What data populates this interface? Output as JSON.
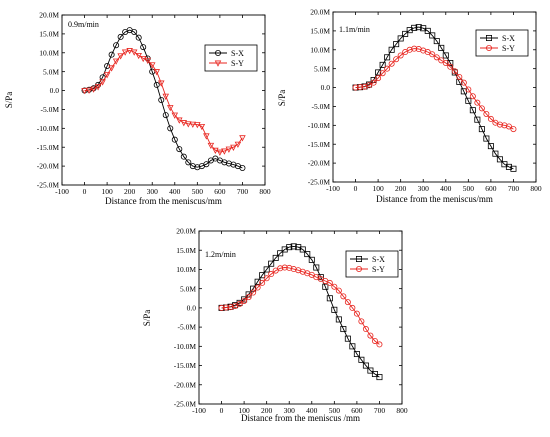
{
  "figure": {
    "panels": [
      {
        "id": "a",
        "label": "0.9m/min"
      },
      {
        "id": "b",
        "label": "1.1m/min"
      },
      {
        "id": "c",
        "label": "1.2m/min"
      }
    ]
  },
  "colors": {
    "sx": "#000000",
    "sy": "#e8251f",
    "axis": "#000000"
  },
  "chart_data": [
    {
      "type": "line",
      "title": "",
      "annotation": "0.9m/min",
      "xlabel": "Distance from the meniscus/mm",
      "ylabel": "S/Pa",
      "xlim": [
        -100,
        800
      ],
      "ylim": [
        -25,
        20
      ],
      "y_unit": "M",
      "xticks": [
        -100,
        0,
        100,
        200,
        300,
        400,
        500,
        600,
        700,
        800
      ],
      "yticks": [
        20,
        15,
        10,
        5,
        0,
        -5,
        -10,
        -15,
        -20,
        -25
      ],
      "xtick_labels": [
        "-100",
        "0",
        "100",
        "200",
        "300",
        "400",
        "500",
        "600",
        "700",
        "800"
      ],
      "ytick_labels": [
        "20.0M",
        "15.0M",
        "10.0M",
        "5.0M",
        "0.0",
        "-5.0M",
        "-10.0M",
        "-15.0M",
        "-20.0M",
        "-25.0M"
      ],
      "legend": "top-right",
      "series": [
        {
          "name": "S-X",
          "marker": "circle",
          "x": [
            0,
            20,
            40,
            60,
            80,
            100,
            120,
            140,
            160,
            180,
            200,
            220,
            240,
            260,
            280,
            300,
            320,
            340,
            360,
            380,
            400,
            420,
            440,
            460,
            480,
            500,
            520,
            540,
            560,
            580,
            600,
            620,
            640,
            660,
            680,
            700
          ],
          "y": [
            0,
            0.2,
            0.6,
            1.5,
            3.5,
            6.5,
            9.5,
            12.0,
            14.2,
            15.5,
            16.0,
            15.5,
            14.0,
            11.5,
            8.5,
            5.0,
            1.5,
            -2.5,
            -6.5,
            -10.0,
            -13.0,
            -15.5,
            -17.5,
            -19.0,
            -20.0,
            -20.3,
            -20.0,
            -19.5,
            -18.5,
            -18.0,
            -18.5,
            -19.0,
            -19.3,
            -19.6,
            -20.0,
            -20.5
          ]
        },
        {
          "name": "S-Y",
          "marker": "triangle-down",
          "x": [
            0,
            20,
            40,
            60,
            80,
            100,
            120,
            140,
            160,
            180,
            200,
            220,
            240,
            260,
            280,
            300,
            320,
            340,
            360,
            380,
            400,
            420,
            440,
            460,
            480,
            500,
            520,
            540,
            560,
            580,
            600,
            620,
            640,
            660,
            680,
            700
          ],
          "y": [
            0,
            0.1,
            0.4,
            1.0,
            2.3,
            4.2,
            6.0,
            7.8,
            9.2,
            10.2,
            10.6,
            10.2,
            9.3,
            8.5,
            8.0,
            6.8,
            5.0,
            2.0,
            -1.5,
            -4.5,
            -6.5,
            -7.8,
            -8.5,
            -8.8,
            -8.9,
            -9.0,
            -9.5,
            -12.0,
            -14.5,
            -15.8,
            -16.3,
            -16.0,
            -15.5,
            -15.0,
            -14.2,
            -12.5
          ]
        }
      ]
    },
    {
      "type": "line",
      "title": "",
      "annotation": "1.1m/min",
      "xlabel": "Distance from the meniscus/mm",
      "ylabel": "S/Pa",
      "xlim": [
        -100,
        800
      ],
      "ylim": [
        -25,
        20
      ],
      "y_unit": "M",
      "xticks": [
        -100,
        0,
        100,
        200,
        300,
        400,
        500,
        600,
        700,
        800
      ],
      "yticks": [
        20,
        15,
        10,
        5,
        0,
        -5,
        -10,
        -15,
        -20,
        -25
      ],
      "xtick_labels": [
        "-100",
        "0",
        "100",
        "200",
        "300",
        "400",
        "500",
        "600",
        "700",
        "800"
      ],
      "ytick_labels": [
        "20.0M",
        "15.0M",
        "10.0M",
        "5.0M",
        "0.0",
        "-5.0M",
        "-10.0M",
        "-15.0M",
        "-20.0M",
        "-25.0M"
      ],
      "legend": "top-right",
      "series": [
        {
          "name": "S-X",
          "marker": "square",
          "x": [
            0,
            20,
            40,
            60,
            80,
            100,
            120,
            140,
            160,
            180,
            200,
            220,
            240,
            260,
            280,
            300,
            320,
            340,
            360,
            380,
            400,
            420,
            440,
            460,
            480,
            500,
            520,
            540,
            560,
            580,
            600,
            620,
            640,
            660,
            680,
            700
          ],
          "y": [
            0,
            0.1,
            0.3,
            0.8,
            2.0,
            4.0,
            6.0,
            8.0,
            10.0,
            11.5,
            13.0,
            14.2,
            15.2,
            15.8,
            16.0,
            15.7,
            15.0,
            13.8,
            12.3,
            10.5,
            8.5,
            6.5,
            4.0,
            1.5,
            -1.0,
            -3.5,
            -6.0,
            -8.5,
            -11.0,
            -13.5,
            -15.5,
            -17.5,
            -19.0,
            -20.3,
            -21.0,
            -21.5
          ]
        },
        {
          "name": "S-Y",
          "marker": "circle",
          "x": [
            0,
            20,
            40,
            60,
            80,
            100,
            120,
            140,
            160,
            180,
            200,
            220,
            240,
            260,
            280,
            300,
            320,
            340,
            360,
            380,
            400,
            420,
            440,
            460,
            480,
            500,
            520,
            540,
            560,
            580,
            600,
            620,
            640,
            660,
            680,
            700
          ],
          "y": [
            0,
            0.1,
            0.2,
            0.6,
            1.3,
            2.5,
            3.8,
            5.0,
            6.3,
            7.5,
            8.5,
            9.4,
            10.0,
            10.3,
            10.2,
            9.8,
            9.4,
            8.8,
            8.0,
            7.2,
            6.5,
            5.5,
            4.3,
            2.8,
            1.3,
            -0.5,
            -2.3,
            -4.0,
            -5.5,
            -7.0,
            -8.3,
            -9.3,
            -9.8,
            -10.0,
            -10.3,
            -11.0
          ]
        }
      ]
    },
    {
      "type": "line",
      "title": "",
      "annotation": "1.2m/min",
      "xlabel": "Distance from the meniscus /mm",
      "ylabel": "S/Pa",
      "xlim": [
        -100,
        800
      ],
      "ylim": [
        -25,
        20
      ],
      "y_unit": "M",
      "xticks": [
        -100,
        0,
        100,
        200,
        300,
        400,
        500,
        600,
        700,
        800
      ],
      "yticks": [
        20,
        15,
        10,
        5,
        0,
        -5,
        -10,
        -15,
        -20,
        -25
      ],
      "xtick_labels": [
        "-100",
        "0",
        "100",
        "200",
        "300",
        "400",
        "500",
        "600",
        "700",
        "800"
      ],
      "ytick_labels": [
        "20.0M",
        "15.0M",
        "10.0M",
        "5.0M",
        "0.0",
        "-5.0M",
        "-10.0M",
        "-15.0M",
        "-20.0M",
        "-25.0M"
      ],
      "legend": "top-right",
      "series": [
        {
          "name": "S-X",
          "marker": "square",
          "x": [
            0,
            20,
            40,
            60,
            80,
            100,
            120,
            140,
            160,
            180,
            200,
            220,
            240,
            260,
            280,
            300,
            320,
            340,
            360,
            380,
            400,
            420,
            440,
            460,
            480,
            500,
            520,
            540,
            560,
            580,
            600,
            620,
            640,
            660,
            680,
            700
          ],
          "y": [
            0,
            0.1,
            0.3,
            0.7,
            1.3,
            2.2,
            3.5,
            5.0,
            6.8,
            8.5,
            10.0,
            11.5,
            13.0,
            14.2,
            15.2,
            15.8,
            16.0,
            15.8,
            15.2,
            14.0,
            12.5,
            10.5,
            8.0,
            5.5,
            2.5,
            -0.5,
            -3.0,
            -5.5,
            -8.0,
            -10.0,
            -12.0,
            -13.5,
            -15.0,
            -16.3,
            -17.2,
            -18.0
          ]
        },
        {
          "name": "S-Y",
          "marker": "circle",
          "x": [
            0,
            20,
            40,
            60,
            80,
            100,
            120,
            140,
            160,
            180,
            200,
            220,
            240,
            260,
            280,
            300,
            320,
            340,
            360,
            380,
            400,
            420,
            440,
            460,
            480,
            500,
            520,
            540,
            560,
            580,
            600,
            620,
            640,
            660,
            680,
            700
          ],
          "y": [
            0,
            0.1,
            0.2,
            0.5,
            1.0,
            1.8,
            2.8,
            4.0,
            5.3,
            6.5,
            7.7,
            8.8,
            9.7,
            10.3,
            10.5,
            10.4,
            10.1,
            9.8,
            9.4,
            9.0,
            8.6,
            8.0,
            7.5,
            7.0,
            6.5,
            5.5,
            4.5,
            3.0,
            1.5,
            0,
            -1.5,
            -3.5,
            -5.5,
            -7.2,
            -8.6,
            -9.5
          ]
        }
      ]
    }
  ]
}
